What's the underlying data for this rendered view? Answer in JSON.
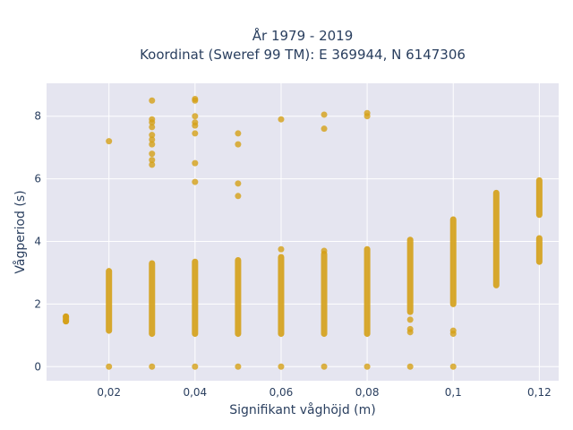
{
  "chart_data": {
    "type": "scatter",
    "title_lines": [
      "År 1979 - 2019",
      "Koordinat (Sweref 99 TM): E 369944, N 6147306"
    ],
    "xlabel": "Signifikant våghöjd (m)",
    "ylabel": "Vågperiod (s)",
    "xlim": [
      0.0055,
      0.1245
    ],
    "ylim": [
      -0.45,
      9.05
    ],
    "x_ticks": [
      0.02,
      0.04,
      0.06,
      0.08,
      0.1,
      0.12
    ],
    "x_tick_labels": [
      "0,02",
      "0,04",
      "0,06",
      "0,08",
      "0,1",
      "0,12"
    ],
    "y_ticks": [
      0,
      2,
      4,
      6,
      8
    ],
    "y_tick_labels": [
      "0",
      "2",
      "4",
      "6",
      "8"
    ],
    "grid": true,
    "legend": "none",
    "marker_color": "#d4a017",
    "background_color": "#e5e5f0",
    "series": [
      {
        "dense_ranges": [
          {
            "x": 0.01,
            "y_from": 1.45,
            "y_to": 1.6
          },
          {
            "x": 0.02,
            "y_from": 1.15,
            "y_to": 3.05
          },
          {
            "x": 0.03,
            "y_from": 1.05,
            "y_to": 3.3
          },
          {
            "x": 0.04,
            "y_from": 1.05,
            "y_to": 3.35
          },
          {
            "x": 0.05,
            "y_from": 1.05,
            "y_to": 3.4
          },
          {
            "x": 0.06,
            "y_from": 1.05,
            "y_to": 3.5
          },
          {
            "x": 0.07,
            "y_from": 1.05,
            "y_to": 3.6
          },
          {
            "x": 0.08,
            "y_from": 1.05,
            "y_to": 3.75
          },
          {
            "x": 0.09,
            "y_from": 1.75,
            "y_to": 4.05
          },
          {
            "x": 0.1,
            "y_from": 2.0,
            "y_to": 4.7
          },
          {
            "x": 0.11,
            "y_from": 2.6,
            "y_to": 5.55
          },
          {
            "x": 0.12,
            "y_from": 4.85,
            "y_to": 5.95
          },
          {
            "x": 0.12,
            "y_from": 3.35,
            "y_to": 4.1
          }
        ],
        "points": [
          {
            "x": 0.01,
            "y": 1.45
          },
          {
            "x": 0.01,
            "y": 1.6
          },
          {
            "x": 0.02,
            "y": 7.2
          },
          {
            "x": 0.02,
            "y": 0
          },
          {
            "x": 0.03,
            "y": 8.5
          },
          {
            "x": 0.03,
            "y": 7.9
          },
          {
            "x": 0.03,
            "y": 7.8
          },
          {
            "x": 0.03,
            "y": 7.65
          },
          {
            "x": 0.03,
            "y": 7.4
          },
          {
            "x": 0.03,
            "y": 7.25
          },
          {
            "x": 0.03,
            "y": 7.1
          },
          {
            "x": 0.03,
            "y": 6.8
          },
          {
            "x": 0.03,
            "y": 6.6
          },
          {
            "x": 0.03,
            "y": 6.45
          },
          {
            "x": 0.03,
            "y": 0
          },
          {
            "x": 0.04,
            "y": 8.55
          },
          {
            "x": 0.04,
            "y": 8.5
          },
          {
            "x": 0.04,
            "y": 8.0
          },
          {
            "x": 0.04,
            "y": 7.8
          },
          {
            "x": 0.04,
            "y": 7.7
          },
          {
            "x": 0.04,
            "y": 7.45
          },
          {
            "x": 0.04,
            "y": 6.5
          },
          {
            "x": 0.04,
            "y": 5.9
          },
          {
            "x": 0.04,
            "y": 0
          },
          {
            "x": 0.05,
            "y": 7.45
          },
          {
            "x": 0.05,
            "y": 7.1
          },
          {
            "x": 0.05,
            "y": 5.85
          },
          {
            "x": 0.05,
            "y": 5.45
          },
          {
            "x": 0.05,
            "y": 0
          },
          {
            "x": 0.06,
            "y": 7.9
          },
          {
            "x": 0.06,
            "y": 3.75
          },
          {
            "x": 0.06,
            "y": 0
          },
          {
            "x": 0.07,
            "y": 8.05
          },
          {
            "x": 0.07,
            "y": 7.6
          },
          {
            "x": 0.07,
            "y": 3.7
          },
          {
            "x": 0.07,
            "y": 0
          },
          {
            "x": 0.08,
            "y": 8.1
          },
          {
            "x": 0.08,
            "y": 8.0
          },
          {
            "x": 0.08,
            "y": 0
          },
          {
            "x": 0.09,
            "y": 1.5
          },
          {
            "x": 0.09,
            "y": 1.2
          },
          {
            "x": 0.09,
            "y": 1.1
          },
          {
            "x": 0.09,
            "y": 0
          },
          {
            "x": 0.1,
            "y": 1.15
          },
          {
            "x": 0.1,
            "y": 1.05
          },
          {
            "x": 0.1,
            "y": 0
          }
        ]
      }
    ]
  }
}
